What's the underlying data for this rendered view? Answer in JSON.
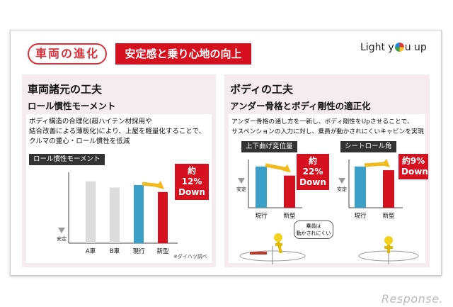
{
  "header": {
    "section_pill": "車両の進化",
    "theme_banner": "安定感と乗り心地の向上",
    "logo_pre": "Light y",
    "logo_post": "u up"
  },
  "left_panel": {
    "title": "車両諸元の工夫",
    "subtitle": "ロール慣性モーメント",
    "description": [
      "ボディ構造の合理化(超ハイテン材採用や",
      "結合改善による薄板化)により、上屋を軽量化することで、",
      "クルマの重心・ロール慣性を低減"
    ],
    "chart_tag": "ロール慣性モーメント",
    "callout": [
      "約12%",
      "Down"
    ],
    "stable_label": "安定",
    "note": "※ダイハツ調べ"
  },
  "right_panel": {
    "title": "ボディの工夫",
    "subtitle": "アンダー骨格とボディ剛性の適正化",
    "description": [
      "アンダー骨格の通し方を一新し、ボディ剛性をUpさせることで、",
      "サスペンションの入力に対し、乗員が動かされにくいキャビンを実現"
    ],
    "chart1_tag": "上下曲げ変位量",
    "chart1_callout": [
      "約22%",
      "Down"
    ],
    "chart2_tag": "シートロール角",
    "chart2_callout": [
      "約9%",
      "Down"
    ],
    "stable_label": "安定",
    "bubble": [
      "乗員は",
      "動かされにくい"
    ]
  },
  "watermark": "Response.",
  "colors": {
    "accent_red": "#d7101f",
    "bar_gray": "#dcdcdc",
    "bar_blue": "#3aa0c8",
    "bar_red": "#d7101f",
    "arrow_yellow": "#f2bb1d"
  },
  "chart_data": [
    {
      "type": "bar",
      "title": "ロール慣性モーメント",
      "categories": [
        "A車",
        "B車",
        "現行",
        "新型"
      ],
      "values": [
        100,
        90,
        94,
        82.7
      ],
      "ylim": [
        0,
        110
      ],
      "units": "relative"
    },
    {
      "type": "bar",
      "title": "上下曲げ変位量",
      "categories": [
        "現行",
        "新型"
      ],
      "values": [
        100,
        78
      ],
      "ylim": [
        0,
        110
      ],
      "units": "relative"
    },
    {
      "type": "bar",
      "title": "シートロール角",
      "categories": [
        "現行",
        "新型"
      ],
      "values": [
        100,
        91
      ],
      "ylim": [
        0,
        110
      ],
      "units": "relative"
    }
  ]
}
